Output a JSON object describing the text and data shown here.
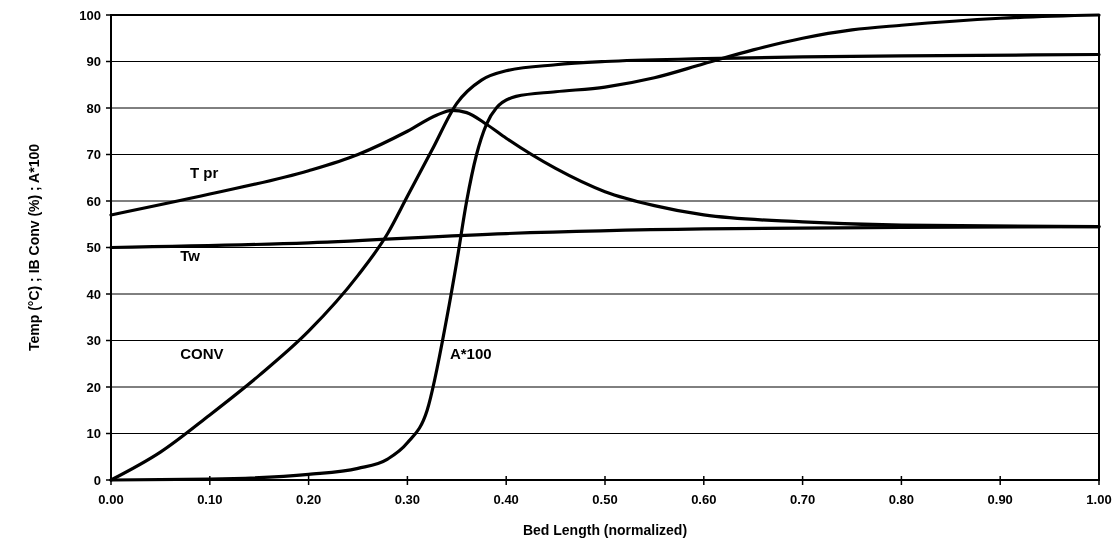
{
  "chart_data": {
    "type": "line",
    "xlabel": "Bed Length (normalized)",
    "ylabel": "Temp (°C) ; IB Conv (%) ; A*100",
    "series": [
      {
        "name": "T pr",
        "color": "#000000",
        "x": [
          0,
          0.1,
          0.2,
          0.25,
          0.3,
          0.33,
          0.345,
          0.36,
          0.38,
          0.4,
          0.45,
          0.5,
          0.55,
          0.6,
          0.7,
          0.8,
          1.0
        ],
        "values": [
          57,
          61.5,
          66.5,
          70,
          75,
          78.5,
          79.5,
          79,
          76.5,
          73.5,
          67,
          62,
          59,
          57,
          55.5,
          54.8,
          54.5
        ]
      },
      {
        "name": "Tw",
        "color": "#000000",
        "x": [
          0,
          0.2,
          0.4,
          0.6,
          0.8,
          1.0
        ],
        "values": [
          50,
          51,
          53,
          54,
          54.3,
          54.5
        ]
      },
      {
        "name": "CONV",
        "color": "#000000",
        "x": [
          0,
          0.05,
          0.1,
          0.15,
          0.2,
          0.25,
          0.28,
          0.3,
          0.325,
          0.35,
          0.375,
          0.4,
          0.45,
          0.5,
          0.6,
          0.7,
          0.8,
          1.0
        ],
        "values": [
          0,
          6,
          14,
          22.5,
          32,
          44,
          53,
          61,
          71,
          81,
          86,
          88,
          89.3,
          90,
          90.6,
          91,
          91.2,
          91.5
        ]
      },
      {
        "name": "A*100",
        "color": "#000000",
        "x": [
          0,
          0.1,
          0.2,
          0.25,
          0.28,
          0.3,
          0.32,
          0.34,
          0.35,
          0.36,
          0.37,
          0.38,
          0.39,
          0.41,
          0.45,
          0.5,
          0.55,
          0.6,
          0.65,
          0.7,
          0.75,
          0.8,
          0.9,
          1.0
        ],
        "values": [
          0,
          0.2,
          1.2,
          2.5,
          4.5,
          8,
          15,
          35,
          47,
          60,
          70,
          76.5,
          80,
          82.5,
          83.5,
          84.5,
          86.5,
          89.5,
          92.5,
          95,
          96.8,
          97.8,
          99.3,
          100
        ]
      }
    ],
    "xlim": [
      0,
      1
    ],
    "xticks": [
      {
        "value": 0,
        "label": "0.00"
      },
      {
        "value": 0.1,
        "label": "0.10"
      },
      {
        "value": 0.2,
        "label": "0.20"
      },
      {
        "value": 0.3,
        "label": "0.30"
      },
      {
        "value": 0.4,
        "label": "0.40"
      },
      {
        "value": 0.5,
        "label": "0.50"
      },
      {
        "value": 0.6,
        "label": "0.60"
      },
      {
        "value": 0.7,
        "label": "0.70"
      },
      {
        "value": 0.8,
        "label": "0.80"
      },
      {
        "value": 0.9,
        "label": "0.90"
      },
      {
        "value": 1,
        "label": "1.00"
      }
    ],
    "ylim": [
      0,
      100
    ],
    "yticks": [
      0,
      10,
      20,
      30,
      40,
      50,
      60,
      70,
      80,
      90,
      100
    ],
    "grid": "y",
    "legend": false,
    "marker": "none",
    "line_style": "solid"
  }
}
